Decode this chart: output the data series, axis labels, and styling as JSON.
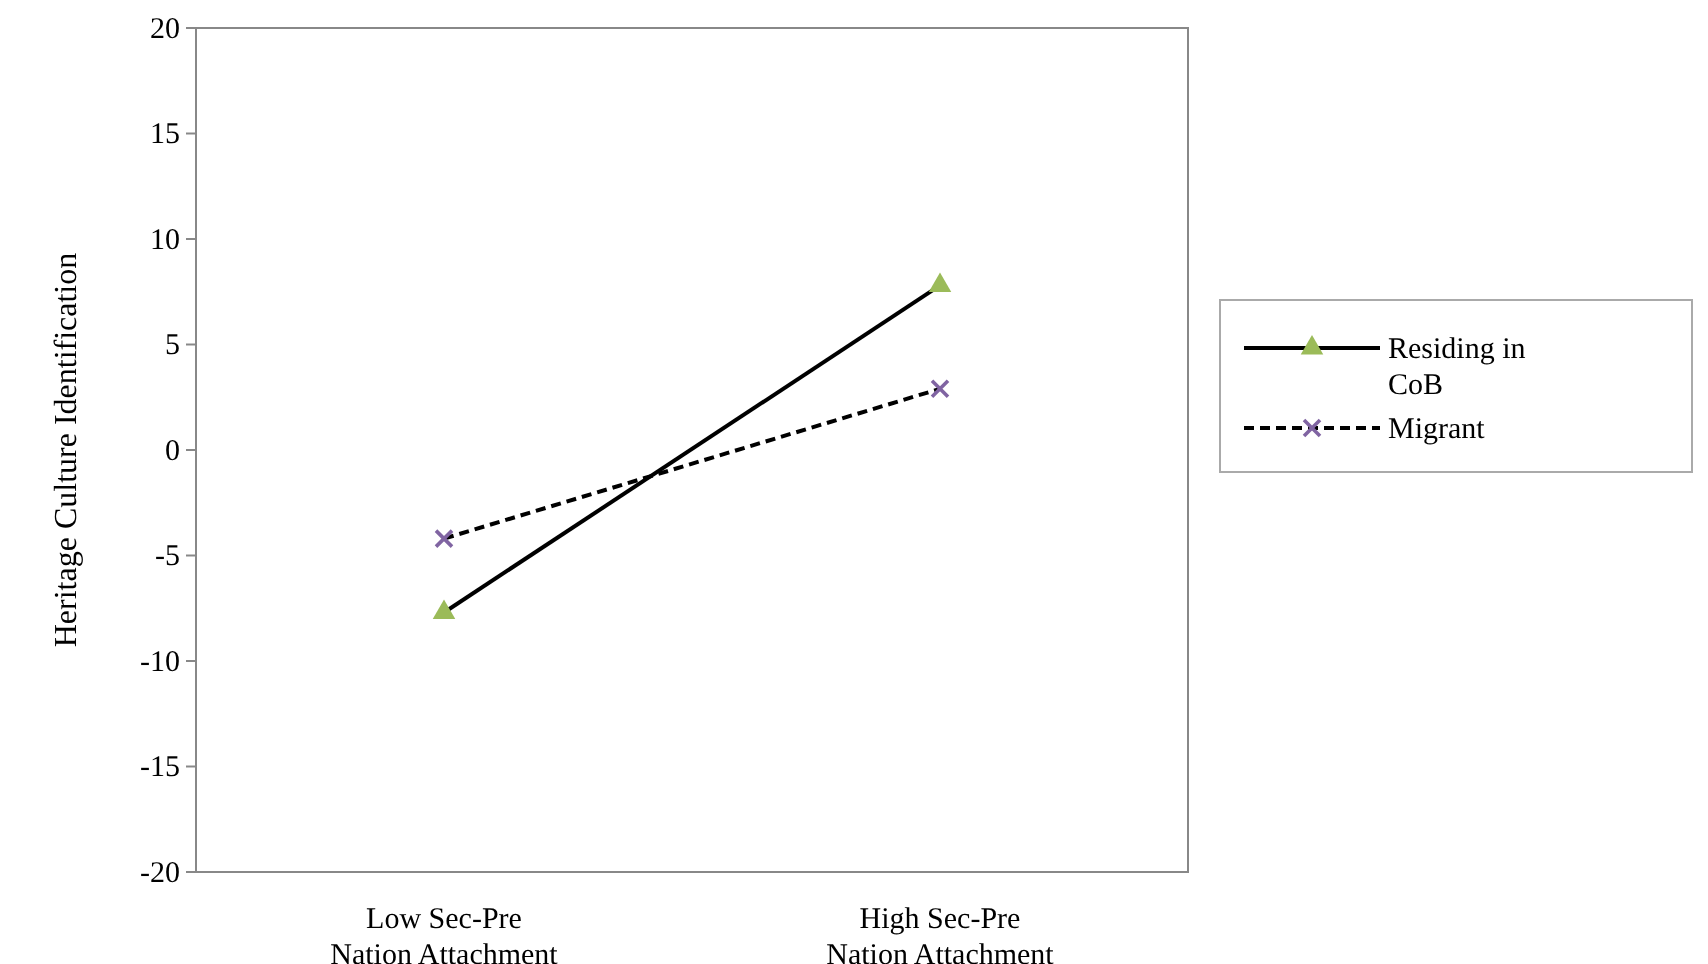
{
  "chart_data": {
    "type": "line",
    "ylabel": "Heritage Culture Identification",
    "categories": [
      "Low Sec-Pre Nation Attachment",
      "High Sec-Pre Nation Attachment"
    ],
    "series": [
      {
        "name": "Residing in CoB",
        "color": "#9bbb59",
        "values": [
          -7.7,
          7.8
        ],
        "marker": "triangle",
        "line_style": "solid"
      },
      {
        "name": "Migrant",
        "color": "#8064a2",
        "values": [
          -4.2,
          2.9
        ],
        "marker": "cross",
        "line_style": "dashed"
      }
    ],
    "ylim": [
      -20,
      20
    ],
    "yticks": [
      -20,
      -15,
      -10,
      -5,
      0,
      5,
      10,
      15,
      20
    ],
    "grid": false,
    "legend": "right"
  }
}
